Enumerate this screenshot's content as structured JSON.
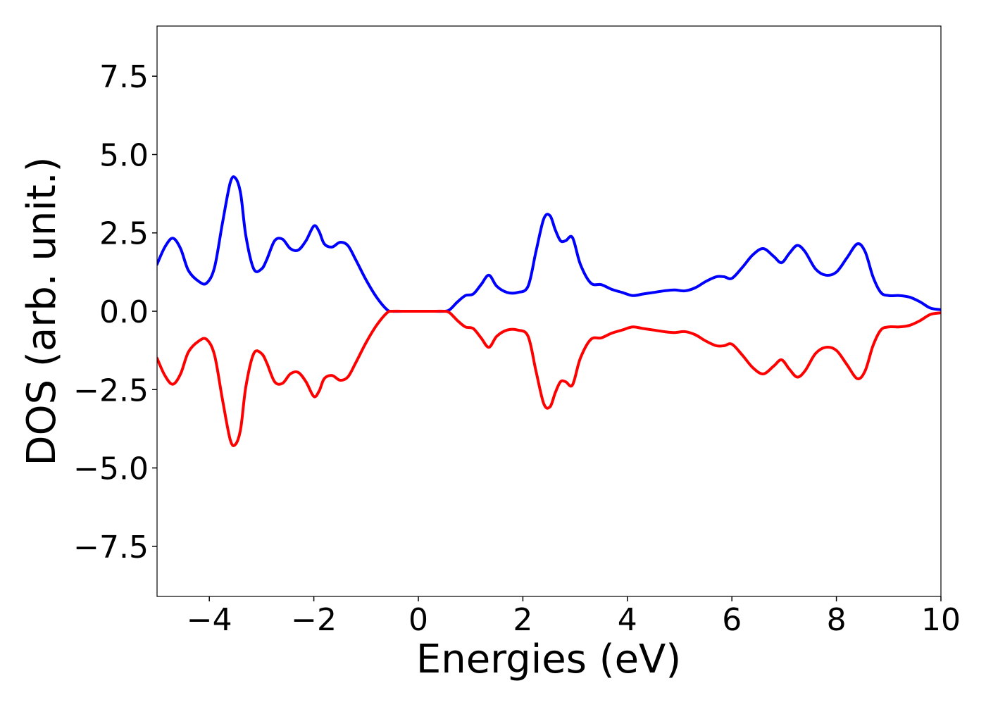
{
  "chart_data": {
    "type": "line",
    "title": "",
    "xlabel": "Energies (eV)",
    "ylabel": "DOS (arb. unit.)",
    "xlim": [
      -5,
      10
    ],
    "ylim": [
      -9.1,
      9.1
    ],
    "grid": false,
    "legend": "none",
    "x_ticks": [
      {
        "value": -4,
        "label": "−4"
      },
      {
        "value": -2,
        "label": "−2"
      },
      {
        "value": 0,
        "label": "0"
      },
      {
        "value": 2,
        "label": "2"
      },
      {
        "value": 4,
        "label": "4"
      },
      {
        "value": 6,
        "label": "6"
      },
      {
        "value": 8,
        "label": "8"
      },
      {
        "value": 10,
        "label": "10"
      }
    ],
    "y_ticks": [
      {
        "value": 7.5,
        "label": "7.5"
      },
      {
        "value": 5.0,
        "label": "5.0"
      },
      {
        "value": 2.5,
        "label": "2.5"
      },
      {
        "value": 0.0,
        "label": "0.0"
      },
      {
        "value": -2.5,
        "label": "−2.5"
      },
      {
        "value": -5.0,
        "label": "−5.0"
      },
      {
        "value": -7.5,
        "label": "−7.5"
      }
    ],
    "series": [
      {
        "color": "#0000ff",
        "x": [
          -5.0,
          -4.85,
          -4.7,
          -4.55,
          -4.4,
          -4.2,
          -4.05,
          -3.9,
          -3.75,
          -3.6,
          -3.5,
          -3.4,
          -3.3,
          -3.15,
          -3.0,
          -2.9,
          -2.75,
          -2.6,
          -2.45,
          -2.3,
          -2.15,
          -2.0,
          -1.9,
          -1.8,
          -1.65,
          -1.5,
          -1.35,
          -1.2,
          -1.0,
          -0.8,
          -0.6,
          -0.5,
          -0.3,
          0.0,
          0.3,
          0.5,
          0.6,
          0.75,
          0.9,
          1.05,
          1.2,
          1.35,
          1.5,
          1.7,
          1.9,
          2.1,
          2.25,
          2.4,
          2.52,
          2.62,
          2.72,
          2.82,
          2.95,
          3.1,
          3.3,
          3.5,
          3.7,
          3.9,
          4.1,
          4.3,
          4.5,
          4.7,
          4.9,
          5.1,
          5.3,
          5.5,
          5.7,
          5.85,
          6.0,
          6.2,
          6.4,
          6.6,
          6.8,
          6.95,
          7.1,
          7.25,
          7.4,
          7.6,
          7.8,
          8.0,
          8.2,
          8.4,
          8.55,
          8.7,
          8.85,
          9.0,
          9.2,
          9.4,
          9.6,
          9.8,
          10.0
        ],
        "values": [
          1.5,
          2.05,
          2.33,
          2.0,
          1.3,
          0.95,
          0.9,
          1.4,
          2.8,
          4.1,
          4.25,
          3.75,
          2.4,
          1.35,
          1.35,
          1.65,
          2.25,
          2.3,
          2.0,
          1.95,
          2.25,
          2.72,
          2.55,
          2.15,
          2.05,
          2.2,
          2.1,
          1.65,
          1.0,
          0.45,
          0.05,
          0.0,
          0.0,
          0.0,
          0.0,
          0.0,
          0.05,
          0.3,
          0.5,
          0.55,
          0.85,
          1.15,
          0.8,
          0.6,
          0.6,
          0.8,
          1.9,
          2.95,
          3.05,
          2.6,
          2.25,
          2.25,
          2.35,
          1.5,
          0.9,
          0.85,
          0.7,
          0.6,
          0.5,
          0.55,
          0.6,
          0.65,
          0.68,
          0.65,
          0.75,
          0.95,
          1.1,
          1.1,
          1.05,
          1.4,
          1.8,
          2.0,
          1.75,
          1.55,
          1.85,
          2.1,
          1.9,
          1.35,
          1.15,
          1.25,
          1.7,
          2.15,
          1.9,
          1.1,
          0.6,
          0.5,
          0.5,
          0.45,
          0.3,
          0.1,
          0.05
        ]
      },
      {
        "color": "#ff0000",
        "x": [
          -5.0,
          -4.85,
          -4.7,
          -4.55,
          -4.4,
          -4.2,
          -4.05,
          -3.9,
          -3.75,
          -3.6,
          -3.5,
          -3.4,
          -3.3,
          -3.15,
          -3.0,
          -2.9,
          -2.75,
          -2.6,
          -2.45,
          -2.3,
          -2.15,
          -2.0,
          -1.9,
          -1.8,
          -1.65,
          -1.5,
          -1.35,
          -1.2,
          -1.0,
          -0.8,
          -0.6,
          -0.5,
          -0.3,
          0.0,
          0.3,
          0.5,
          0.6,
          0.75,
          0.9,
          1.05,
          1.2,
          1.35,
          1.5,
          1.7,
          1.9,
          2.1,
          2.25,
          2.4,
          2.52,
          2.62,
          2.72,
          2.82,
          2.95,
          3.1,
          3.3,
          3.5,
          3.7,
          3.9,
          4.1,
          4.3,
          4.5,
          4.7,
          4.9,
          5.1,
          5.3,
          5.5,
          5.7,
          5.85,
          6.0,
          6.2,
          6.4,
          6.6,
          6.8,
          6.95,
          7.1,
          7.25,
          7.4,
          7.6,
          7.8,
          8.0,
          8.2,
          8.4,
          8.55,
          8.7,
          8.85,
          9.0,
          9.2,
          9.4,
          9.6,
          9.8,
          10.0
        ],
        "values": [
          -1.5,
          -2.05,
          -2.33,
          -2.0,
          -1.3,
          -0.95,
          -0.9,
          -1.4,
          -2.8,
          -4.1,
          -4.25,
          -3.75,
          -2.4,
          -1.35,
          -1.35,
          -1.65,
          -2.25,
          -2.3,
          -2.0,
          -1.95,
          -2.25,
          -2.72,
          -2.55,
          -2.15,
          -2.05,
          -2.2,
          -2.1,
          -1.65,
          -1.0,
          -0.45,
          -0.05,
          0.0,
          0.0,
          0.0,
          0.0,
          0.0,
          -0.05,
          -0.3,
          -0.5,
          -0.55,
          -0.85,
          -1.15,
          -0.8,
          -0.6,
          -0.6,
          -0.8,
          -1.9,
          -2.95,
          -3.05,
          -2.6,
          -2.25,
          -2.25,
          -2.35,
          -1.5,
          -0.9,
          -0.85,
          -0.7,
          -0.6,
          -0.5,
          -0.55,
          -0.6,
          -0.65,
          -0.68,
          -0.65,
          -0.75,
          -0.95,
          -1.1,
          -1.1,
          -1.05,
          -1.4,
          -1.8,
          -2.0,
          -1.75,
          -1.55,
          -1.85,
          -2.1,
          -1.9,
          -1.35,
          -1.15,
          -1.25,
          -1.7,
          -2.15,
          -1.9,
          -1.1,
          -0.6,
          -0.5,
          -0.5,
          -0.45,
          -0.3,
          -0.1,
          -0.05
        ]
      }
    ]
  }
}
